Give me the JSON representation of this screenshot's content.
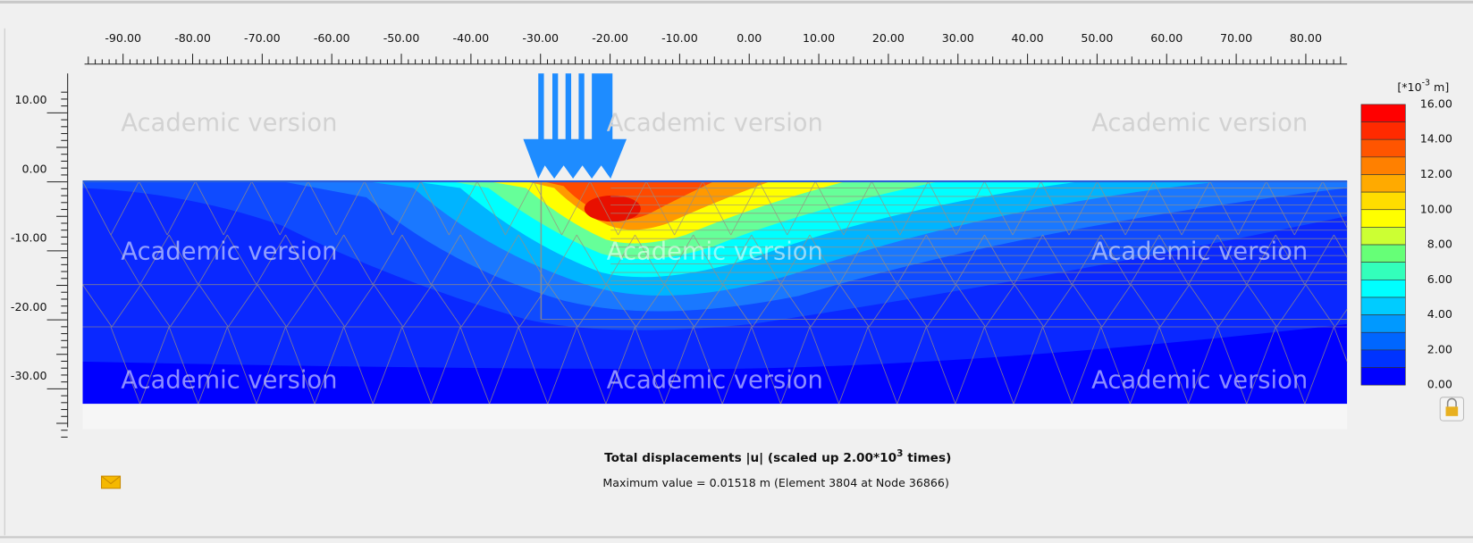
{
  "x_ruler": {
    "labels": [
      "-90.00",
      "-80.00",
      "-70.00",
      "-60.00",
      "-50.00",
      "-40.00",
      "-30.00",
      "-20.00",
      "-10.00",
      "0.00",
      "10.00",
      "20.00",
      "30.00",
      "40.00",
      "50.00",
      "60.00",
      "70.00",
      "80.00"
    ]
  },
  "y_ruler": {
    "labels": [
      "10.00",
      "0.00",
      "-10.00",
      "-20.00",
      "-30.00"
    ]
  },
  "watermark": "Academic version",
  "legend": {
    "unit_parts": [
      "[*10",
      "-3",
      " m]"
    ],
    "labels": [
      "16.00",
      "14.00",
      "12.00",
      "10.00",
      "8.00",
      "6.00",
      "4.00",
      "2.00",
      "0.00"
    ],
    "colors": [
      "#ff0000",
      "#ff2a00",
      "#ff5500",
      "#ff8000",
      "#ffaa00",
      "#ffdd00",
      "#ffff00",
      "#ccff33",
      "#66ff77",
      "#33ffbb",
      "#00ffff",
      "#00ccff",
      "#0099ff",
      "#0066ff",
      "#0033ff",
      "#0000ff"
    ]
  },
  "title_parts": [
    "Total displacements |u| (scaled up 2.00*10",
    "3",
    " times)"
  ],
  "subtitle": "Maximum value = 0.01518 m (Element 3804 at Node 36866)"
}
